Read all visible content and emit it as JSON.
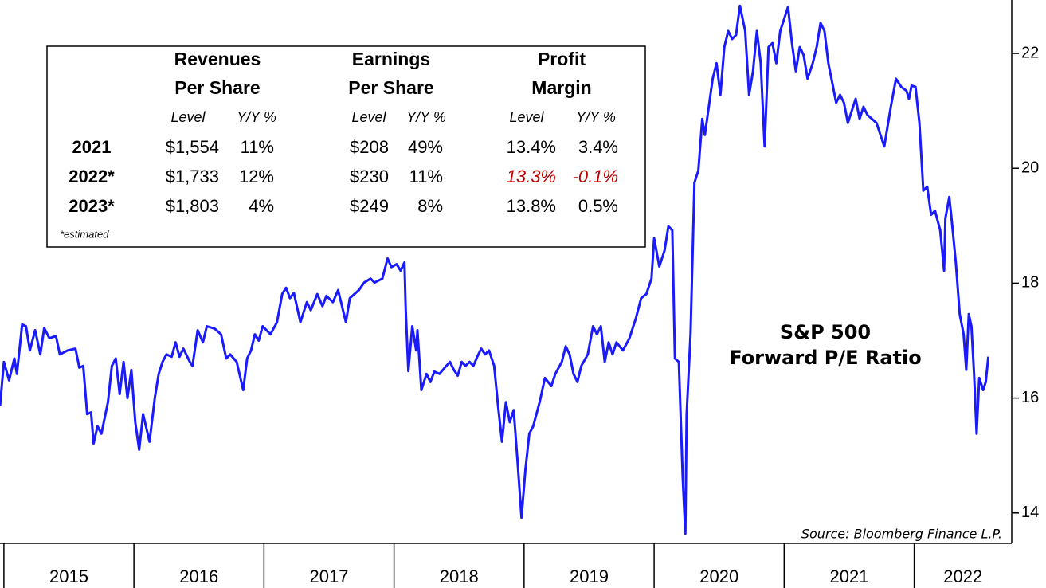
{
  "chart_data": {
    "type": "line",
    "annotation": [
      "S&P 500",
      "Forward P/E Ratio"
    ],
    "source": "Source: Bloomberg Finance L.P.",
    "color": "#1a1aff",
    "xlim": [
      2014.97,
      2022.75
    ],
    "xticks": [
      2015,
      2016,
      2017,
      2018,
      2019,
      2020,
      2021,
      2022
    ],
    "ylim": [
      13.47,
      22.93
    ],
    "yticks": [
      14,
      16,
      18,
      20,
      22
    ],
    "x": [
      2014.97,
      2015.0,
      2015.04,
      2015.08,
      2015.1,
      2015.14,
      2015.17,
      2015.2,
      2015.24,
      2015.28,
      2015.31,
      2015.35,
      2015.4,
      2015.43,
      2015.49,
      2015.55,
      2015.58,
      2015.61,
      2015.64,
      2015.67,
      2015.69,
      2015.72,
      2015.75,
      2015.8,
      2015.83,
      2015.86,
      2015.89,
      2015.92,
      2015.95,
      2015.98,
      2016.01,
      2016.04,
      2016.07,
      2016.12,
      2016.16,
      2016.19,
      2016.22,
      2016.25,
      2016.29,
      2016.32,
      2016.35,
      2016.38,
      2016.43,
      2016.45,
      2016.49,
      2016.53,
      2016.56,
      2016.62,
      2016.67,
      2016.71,
      2016.74,
      2016.79,
      2016.84,
      2016.87,
      2016.9,
      2016.93,
      2016.96,
      2016.99,
      2017.05,
      2017.1,
      2017.14,
      2017.17,
      2017.2,
      2017.23,
      2017.28,
      2017.33,
      2017.36,
      2017.41,
      2017.45,
      2017.48,
      2017.53,
      2017.57,
      2017.63,
      2017.66,
      2017.73,
      2017.77,
      2017.82,
      2017.85,
      2017.91,
      2017.95,
      2017.98,
      2018.02,
      2018.05,
      2018.08,
      2018.09,
      2018.11,
      2018.14,
      2018.17,
      2018.18,
      2018.21,
      2018.25,
      2018.28,
      2018.31,
      2018.35,
      2018.39,
      2018.43,
      2018.46,
      2018.49,
      2018.52,
      2018.55,
      2018.58,
      2018.61,
      2018.64,
      2018.67,
      2018.7,
      2018.73,
      2018.77,
      2018.8,
      2018.83,
      2018.86,
      2018.89,
      2018.92,
      2018.95,
      2018.98,
      2019.01,
      2019.04,
      2019.07,
      2019.12,
      2019.16,
      2019.21,
      2019.24,
      2019.29,
      2019.32,
      2019.35,
      2019.38,
      2019.41,
      2019.44,
      2019.49,
      2019.53,
      2019.56,
      2019.59,
      2019.62,
      2019.65,
      2019.68,
      2019.71,
      2019.76,
      2019.81,
      2019.86,
      2019.9,
      2019.94,
      2019.98,
      2020.0,
      2020.04,
      2020.08,
      2020.11,
      2020.14,
      2020.16,
      2020.19,
      2020.22,
      2020.24,
      2020.25,
      2020.28,
      2020.31,
      2020.34,
      2020.37,
      2020.39,
      2020.42,
      2020.45,
      2020.48,
      2020.51,
      2020.54,
      2020.57,
      2020.6,
      2020.63,
      2020.66,
      2020.7,
      2020.73,
      2020.76,
      2020.79,
      2020.82,
      2020.85,
      2020.88,
      2020.91,
      2020.94,
      2020.97,
      2021.0,
      2021.03,
      2021.06,
      2021.09,
      2021.12,
      2021.15,
      2021.18,
      2021.22,
      2021.25,
      2021.28,
      2021.31,
      2021.34,
      2021.37,
      2021.4,
      2021.43,
      2021.46,
      2021.49,
      2021.52,
      2021.55,
      2021.58,
      2021.61,
      2021.64,
      2021.71,
      2021.77,
      2021.82,
      2021.86,
      2021.9,
      2021.94,
      2021.96,
      2021.98,
      2022.01,
      2022.04,
      2022.07,
      2022.1,
      2022.13,
      2022.16,
      2022.2,
      2022.23,
      2022.24,
      2022.27,
      2022.29,
      2022.32,
      2022.35,
      2022.38,
      2022.4,
      2022.42,
      2022.44,
      2022.46,
      2022.48,
      2022.5,
      2022.53,
      2022.55,
      2022.57
    ],
    "values": [
      15.86,
      16.63,
      16.31,
      16.69,
      16.42,
      17.28,
      17.25,
      16.83,
      17.18,
      16.76,
      17.22,
      17.04,
      17.08,
      16.76,
      16.83,
      16.86,
      16.53,
      16.56,
      15.72,
      15.75,
      15.21,
      15.51,
      15.38,
      15.93,
      16.56,
      16.69,
      16.07,
      16.63,
      16.0,
      16.49,
      15.58,
      15.1,
      15.72,
      15.24,
      16.0,
      16.42,
      16.63,
      16.76,
      16.72,
      16.97,
      16.72,
      16.86,
      16.63,
      16.56,
      17.18,
      16.97,
      17.25,
      17.21,
      17.11,
      16.69,
      16.76,
      16.63,
      16.14,
      16.69,
      16.83,
      17.11,
      17.0,
      17.25,
      17.11,
      17.32,
      17.81,
      17.92,
      17.74,
      17.83,
      17.32,
      17.67,
      17.53,
      17.81,
      17.6,
      17.78,
      17.67,
      17.88,
      17.32,
      17.74,
      17.88,
      18.01,
      18.08,
      18.01,
      18.08,
      18.43,
      18.28,
      18.33,
      18.22,
      18.36,
      17.53,
      16.47,
      17.25,
      16.83,
      17.18,
      16.14,
      16.42,
      16.28,
      16.46,
      16.42,
      16.53,
      16.63,
      16.49,
      16.39,
      16.63,
      16.56,
      16.63,
      16.56,
      16.72,
      16.86,
      16.76,
      16.83,
      16.56,
      15.86,
      15.24,
      15.93,
      15.58,
      15.79,
      14.89,
      13.92,
      14.75,
      15.38,
      15.51,
      15.93,
      16.35,
      16.21,
      16.42,
      16.63,
      16.9,
      16.76,
      16.42,
      16.28,
      16.56,
      16.76,
      17.25,
      17.11,
      17.25,
      16.63,
      16.97,
      16.76,
      16.97,
      16.83,
      17.04,
      17.39,
      17.74,
      17.81,
      18.08,
      18.78,
      18.29,
      18.57,
      18.99,
      18.92,
      16.69,
      16.63,
      14.61,
      13.64,
      15.72,
      17.11,
      19.75,
      19.96,
      20.86,
      20.58,
      21.07,
      21.56,
      21.83,
      21.28,
      22.11,
      22.39,
      22.25,
      22.32,
      22.83,
      22.39,
      21.28,
      21.69,
      22.39,
      21.83,
      20.38,
      22.11,
      22.18,
      21.83,
      22.39,
      22.6,
      22.81,
      22.18,
      21.69,
      22.11,
      21.97,
      21.56,
      21.83,
      22.11,
      22.53,
      22.39,
      21.83,
      21.49,
      21.14,
      21.28,
      21.14,
      20.79,
      21.0,
      21.21,
      20.86,
      21.07,
      20.93,
      20.79,
      20.38,
      21.07,
      21.56,
      21.42,
      21.35,
      21.21,
      21.44,
      21.42,
      20.79,
      19.61,
      19.68,
      19.19,
      19.26,
      18.92,
      18.22,
      19.13,
      19.5,
      19.06,
      18.36,
      17.46,
      17.11,
      16.49,
      17.46,
      17.25,
      16.42,
      15.38,
      16.35,
      16.14,
      16.28,
      16.72
    ]
  },
  "table": {
    "groups": [
      {
        "title": [
          "Revenues",
          "Per Share"
        ],
        "columns": [
          "Level",
          "Y/Y %"
        ]
      },
      {
        "title": [
          "Earnings",
          "Per Share"
        ],
        "columns": [
          "Level",
          "Y/Y %"
        ]
      },
      {
        "title": [
          "Profit",
          "Margin"
        ],
        "columns": [
          "Level",
          "Y/Y %"
        ]
      }
    ],
    "rows": [
      {
        "label": "2021",
        "cells": [
          "$1,554",
          "11%",
          "$208",
          "49%",
          "13.4%",
          "3.4%"
        ]
      },
      {
        "label": "2022*",
        "cells": [
          "$1,733",
          "12%",
          "$230",
          "11%",
          "13.3%",
          "-0.1%"
        ]
      },
      {
        "label": "2023*",
        "cells": [
          "$1,803",
          "4%",
          "$249",
          "8%",
          "13.8%",
          "0.5%"
        ]
      }
    ],
    "note": "*estimated"
  }
}
